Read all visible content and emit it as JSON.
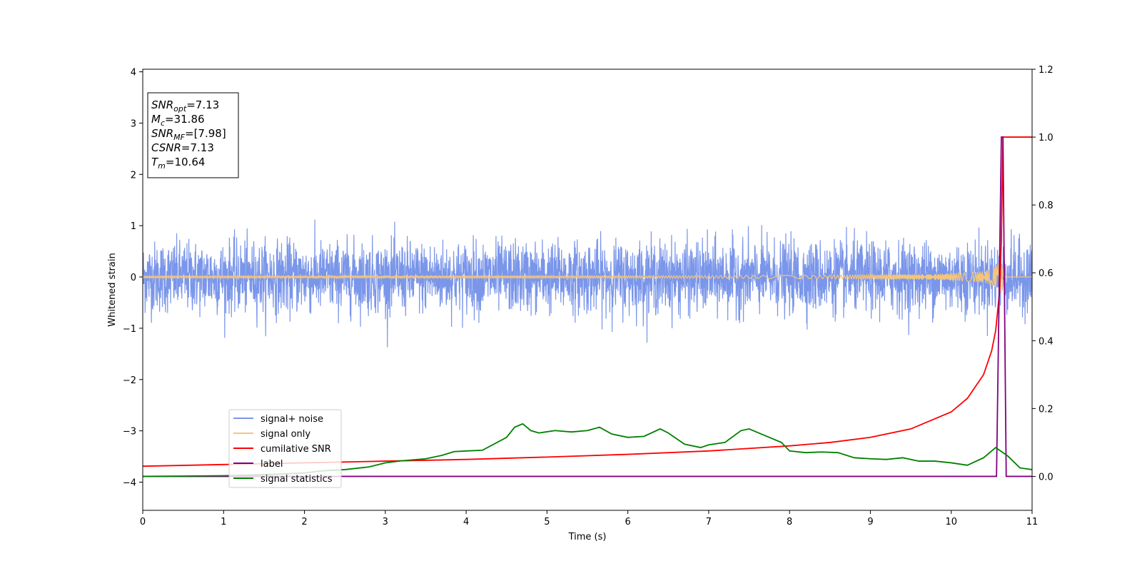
{
  "chart_data": {
    "type": "line",
    "xlabel": "Time (s)",
    "ylabel": "Whitened strain",
    "xlim": [
      0,
      11
    ],
    "ylim_left": [
      -4.55,
      4.05
    ],
    "ylim_right": [
      -0.1,
      1.2
    ],
    "x_ticks": [
      0,
      1,
      2,
      3,
      4,
      5,
      6,
      7,
      8,
      9,
      10,
      11
    ],
    "y_ticks_left": [
      4,
      3,
      2,
      1,
      0,
      -1,
      -2,
      -3,
      -4
    ],
    "y_ticks_left_labels": [
      "4",
      "3",
      "2",
      "1",
      "0",
      "−1",
      "−2",
      "−3",
      "−4"
    ],
    "y_ticks_right": [
      1.2,
      1.0,
      0.8,
      0.6,
      0.4,
      0.2,
      0.0
    ],
    "y_ticks_right_labels": [
      "1.2",
      "1.0",
      "0.8",
      "0.6",
      "0.4",
      "0.2",
      "0.0"
    ],
    "grid": false,
    "legend_placement": "lower-left",
    "annotation": {
      "lines": [
        {
          "sym": "SNR",
          "sub": "opt",
          "rest": "=7.13"
        },
        {
          "sym": "M",
          "sub": "c",
          "rest": "=31.86"
        },
        {
          "sym": "SNR",
          "sub": "MF",
          "rest": "=[7.98]"
        },
        {
          "sym": "CSNR",
          "sub": "",
          "rest": "=7.13"
        },
        {
          "sym": "T",
          "sub": "m",
          "rest": "=10.64"
        }
      ]
    },
    "series": [
      {
        "name": "signal+ noise",
        "axis": "left",
        "color": "#7a96ea",
        "noise_amplitude": 0.55,
        "noise_peak": 1.55
      },
      {
        "name": "signal only",
        "axis": "left",
        "color": "#f5c57a",
        "merger_time": 10.64,
        "peak_amplitude": 0.28
      },
      {
        "name": "cumilative SNR",
        "axis": "right",
        "color": "#ff0000",
        "x": [
          0,
          1,
          2,
          3,
          4,
          5,
          6,
          7,
          8,
          8.5,
          9,
          9.5,
          10,
          10.2,
          10.4,
          10.5,
          10.55,
          10.6,
          10.62,
          10.64,
          10.66,
          11
        ],
        "y": [
          0.03,
          0.035,
          0.04,
          0.045,
          0.05,
          0.057,
          0.065,
          0.075,
          0.09,
          0.1,
          0.115,
          0.14,
          0.19,
          0.23,
          0.3,
          0.37,
          0.43,
          0.55,
          0.7,
          1.0,
          1.0,
          1.0
        ]
      },
      {
        "name": "label",
        "axis": "right",
        "color": "#800080",
        "x": [
          0,
          10.56,
          10.62,
          10.64,
          10.68,
          11
        ],
        "y": [
          0,
          0,
          1.0,
          1.0,
          0,
          0
        ]
      },
      {
        "name": "signal statistics",
        "axis": "right",
        "color": "#008000",
        "x": [
          0,
          0.5,
          1,
          1.5,
          2,
          2.2,
          2.5,
          2.8,
          3,
          3.2,
          3.5,
          3.7,
          3.85,
          4,
          4.2,
          4.5,
          4.6,
          4.7,
          4.8,
          4.9,
          5.1,
          5.3,
          5.5,
          5.65,
          5.8,
          6,
          6.2,
          6.4,
          6.5,
          6.7,
          6.9,
          7.0,
          7.2,
          7.4,
          7.5,
          7.7,
          7.9,
          8.0,
          8.2,
          8.4,
          8.6,
          8.8,
          9.0,
          9.2,
          9.4,
          9.6,
          9.8,
          10.0,
          10.2,
          10.4,
          10.55,
          10.7,
          10.85,
          11
        ],
        "y": [
          0.0,
          0.001,
          0.002,
          0.005,
          0.01,
          0.016,
          0.02,
          0.028,
          0.04,
          0.046,
          0.052,
          0.062,
          0.073,
          0.075,
          0.077,
          0.115,
          0.145,
          0.155,
          0.135,
          0.128,
          0.135,
          0.131,
          0.135,
          0.145,
          0.125,
          0.115,
          0.118,
          0.14,
          0.128,
          0.095,
          0.085,
          0.093,
          0.1,
          0.135,
          0.14,
          0.12,
          0.1,
          0.075,
          0.07,
          0.072,
          0.07,
          0.055,
          0.052,
          0.05,
          0.055,
          0.045,
          0.045,
          0.04,
          0.033,
          0.055,
          0.085,
          0.06,
          0.025,
          0.02
        ]
      }
    ]
  }
}
